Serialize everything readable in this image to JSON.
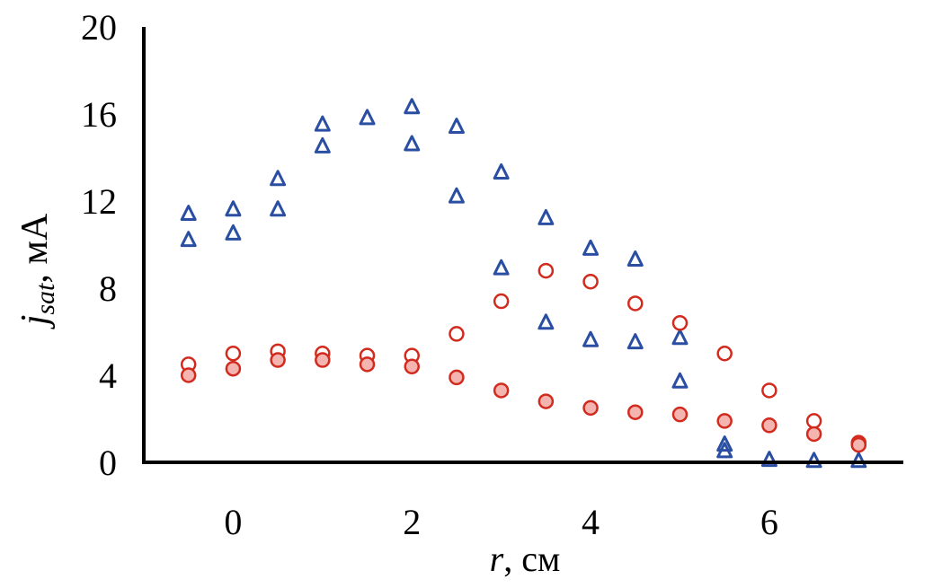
{
  "chart_data": {
    "type": "scatter",
    "xlabel": {
      "var": "r",
      "unit": ", см"
    },
    "ylabel": {
      "var": "j",
      "sub": "sat",
      "unit": ", мА"
    },
    "xlim": [
      -1,
      7.5
    ],
    "ylim": [
      0,
      20
    ],
    "xticks": [
      0,
      2,
      4,
      6
    ],
    "yticks": [
      0,
      4,
      8,
      12,
      16,
      20
    ],
    "grid": false,
    "legend": "none",
    "series": [
      {
        "marker": "triangle-open",
        "color": "#2a4fa2",
        "x": [
          -0.5,
          0,
          0.5,
          1,
          1.5,
          2,
          2.5,
          3,
          3.5,
          4,
          4.5,
          5,
          5.5,
          6,
          6.5,
          7
        ],
        "y": [
          11.4,
          11.6,
          13,
          15.5,
          15.8,
          16.3,
          15.4,
          13.3,
          11.2,
          9.8,
          9.3,
          5.7,
          0.8,
          0.1,
          0.05,
          0.05
        ]
      },
      {
        "marker": "triangle-open",
        "color": "#2a4fa2",
        "x": [
          -0.5,
          0,
          0.5,
          1,
          2,
          2.5,
          3,
          3.5,
          4,
          4.5,
          5,
          5.5
        ],
        "y": [
          10.2,
          10.5,
          11.6,
          14.5,
          14.6,
          12.2,
          8.9,
          6.4,
          5.6,
          5.5,
          3.7,
          0.5
        ]
      },
      {
        "marker": "circle-open",
        "color": "#d22b1e",
        "x": [
          -0.5,
          0,
          0.5,
          1,
          1.5,
          2,
          2.5,
          3,
          3.5,
          4,
          4.5,
          5,
          5.5,
          6,
          6.5,
          7
        ],
        "y": [
          4.5,
          5.0,
          5.1,
          5.0,
          4.9,
          4.9,
          5.9,
          7.4,
          8.8,
          8.3,
          7.3,
          6.4,
          5.0,
          3.3,
          1.9,
          0.9
        ]
      },
      {
        "marker": "circle-filled",
        "color": "#d22b1e",
        "fill": "#f4b4b0",
        "x": [
          -0.5,
          0,
          0.5,
          1,
          1.5,
          2,
          2.5,
          3,
          3.5,
          4,
          4.5,
          5,
          5.5,
          6,
          6.5,
          7
        ],
        "y": [
          4.0,
          4.3,
          4.7,
          4.7,
          4.5,
          4.4,
          3.9,
          3.3,
          2.8,
          2.5,
          2.3,
          2.2,
          1.9,
          1.7,
          1.3,
          0.8
        ]
      }
    ]
  }
}
